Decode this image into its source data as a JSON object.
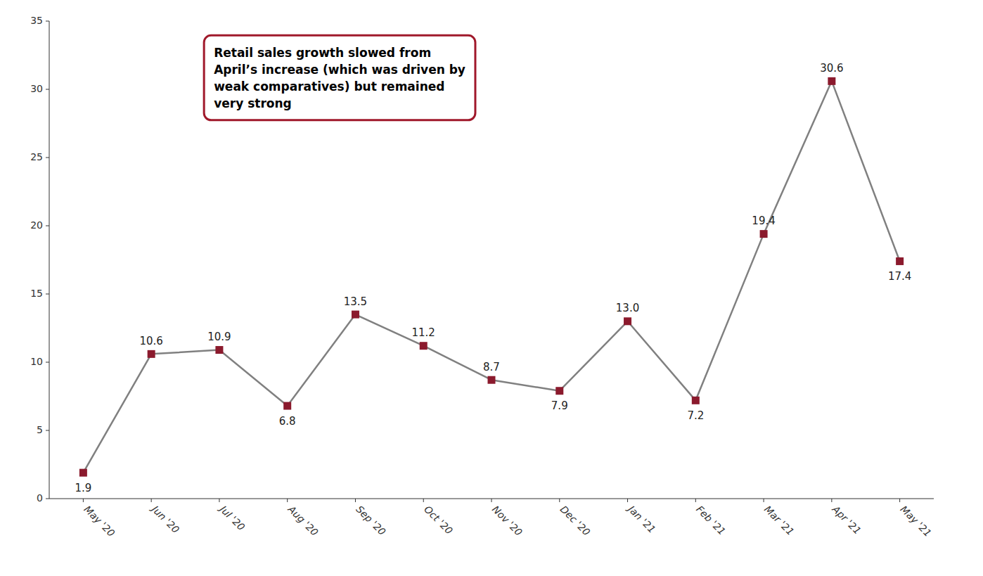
{
  "chart_data": {
    "type": "line",
    "categories": [
      "May '20",
      "Jun '20",
      "Jul '20",
      "Aug '20",
      "Sep '20",
      "Oct '20",
      "Nov '20",
      "Dec '20",
      "Jan '21",
      "Feb '21",
      "Mar '21",
      "Apr '21",
      "May '21"
    ],
    "values": [
      1.9,
      10.6,
      10.9,
      6.8,
      13.5,
      11.2,
      8.7,
      7.9,
      13.0,
      7.2,
      19.4,
      30.6,
      17.4
    ],
    "color": "#808080",
    "colors": [
      "#8B1A2D",
      "#8B1A2D",
      "#8B1A2D",
      "#8B1A2D",
      "#8B1A2D",
      "#8B1A2D",
      "#8B1A2D",
      "#8B1A2D",
      "#8B1A2D",
      "#8B1A2D",
      "#8B1A2D",
      "#8B1A2D",
      "#8B1A2D"
    ],
    "marker": "square",
    "data_labels": true,
    "ylim": [
      0,
      35
    ],
    "yticks": [
      0,
      5,
      10,
      15,
      20,
      25,
      30,
      35
    ],
    "grid": false,
    "annotation": "Retail sales growth slowed from\nApril’s increase (which was driven by\nweak comparatives) but remained\nvery strong"
  }
}
